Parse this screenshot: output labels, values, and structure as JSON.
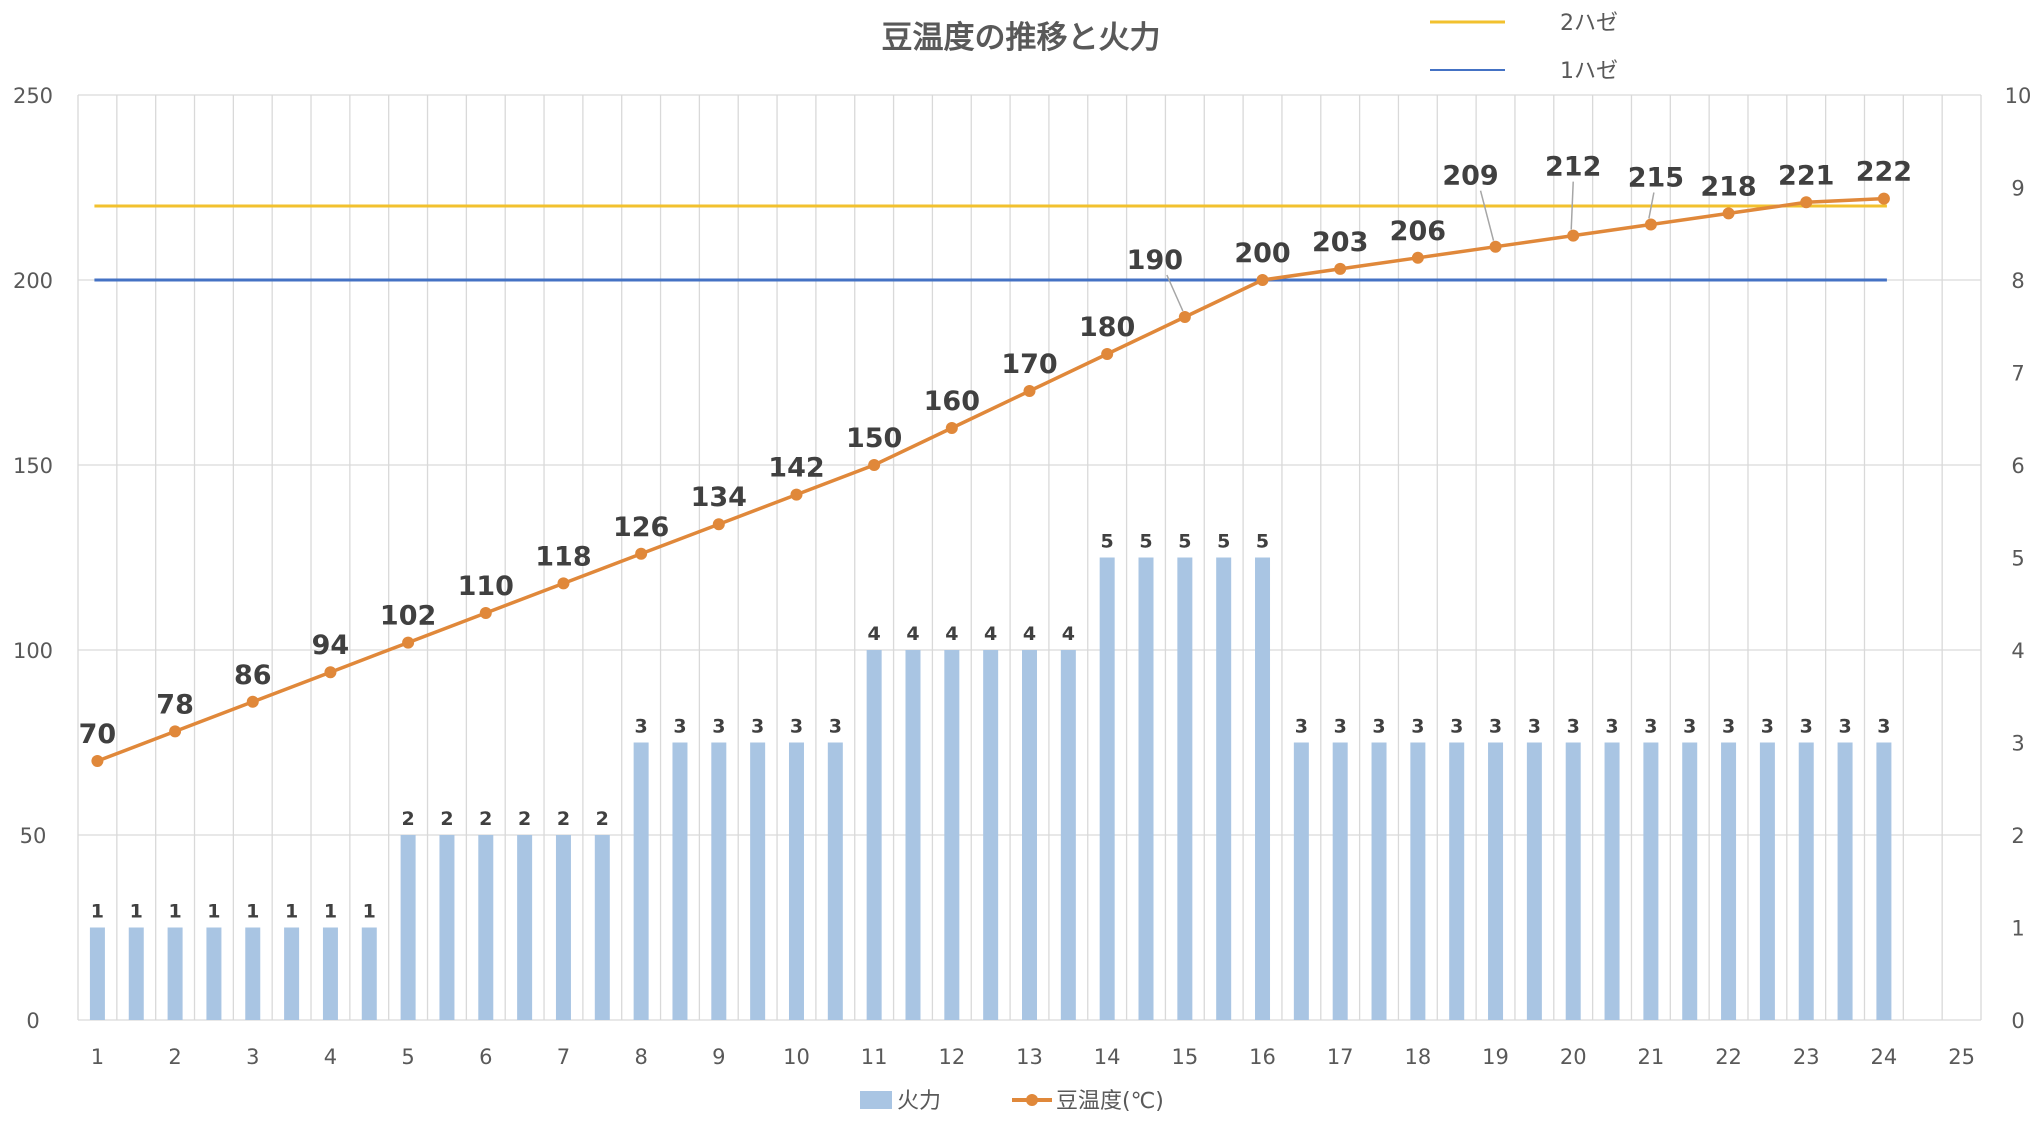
{
  "chart_data": {
    "type": "bar+line",
    "title": "豆温度の推移と火力",
    "x_ticks": [
      "1",
      "2",
      "3",
      "4",
      "5",
      "6",
      "7",
      "8",
      "9",
      "10",
      "11",
      "12",
      "13",
      "14",
      "15",
      "16",
      "17",
      "18",
      "19",
      "20",
      "21",
      "22",
      "23",
      "24",
      "25"
    ],
    "y_left": {
      "range": [
        0,
        250
      ],
      "ticks": [
        "0",
        "50",
        "100",
        "150",
        "200",
        "250"
      ]
    },
    "y_right": {
      "range": [
        0,
        10
      ],
      "ticks": [
        "0",
        "1",
        "2",
        "3",
        "4",
        "5",
        "6",
        "7",
        "8",
        "9",
        "10"
      ]
    },
    "grid": true,
    "series": [
      {
        "name": "火力",
        "type": "bar",
        "axis": "right",
        "color": "#a9c5e3",
        "x": [
          1,
          1.5,
          2,
          2.5,
          3,
          3.5,
          4,
          4.5,
          5,
          5.5,
          6,
          6.5,
          7,
          7.5,
          8,
          8.5,
          9,
          9.5,
          10,
          10.5,
          11,
          11.5,
          12,
          12.5,
          13,
          13.5,
          14,
          14.5,
          15,
          15.5,
          16,
          16.5,
          17,
          17.5,
          18,
          18.5,
          19,
          19.5,
          20,
          20.5,
          21,
          21.5,
          22,
          22.5,
          23,
          23.5,
          24
        ],
        "values": [
          1,
          1,
          1,
          1,
          1,
          1,
          1,
          1,
          2,
          2,
          2,
          2,
          2,
          2,
          3,
          3,
          3,
          3,
          3,
          3,
          4,
          4,
          4,
          4,
          4,
          4,
          5,
          5,
          5,
          5,
          5,
          3,
          3,
          3,
          3,
          3,
          3,
          3,
          3,
          3,
          3,
          3,
          3,
          3,
          3,
          3,
          3
        ]
      },
      {
        "name": "豆温度(℃)",
        "type": "line",
        "axis": "left",
        "color": "#e0883a",
        "x": [
          1,
          2,
          3,
          4,
          5,
          6,
          7,
          8,
          9,
          10,
          11,
          12,
          13,
          14,
          15,
          16,
          17,
          18,
          19,
          20,
          21,
          22,
          23,
          24
        ],
        "values": [
          70,
          78,
          86,
          94,
          102,
          110,
          118,
          126,
          134,
          142,
          150,
          160,
          170,
          180,
          190,
          200,
          203,
          206,
          209,
          212,
          215,
          218,
          221,
          222
        ]
      }
    ],
    "reference_lines": [
      {
        "name": "2ハゼ",
        "value": 220,
        "color": "#f2c12e"
      },
      {
        "name": "1ハゼ",
        "value": 200,
        "color": "#4472c4"
      }
    ],
    "legend": {
      "bottom": [
        "火力",
        "豆温度(℃)"
      ],
      "top_right": [
        "2ハゼ",
        "1ハゼ"
      ]
    }
  }
}
